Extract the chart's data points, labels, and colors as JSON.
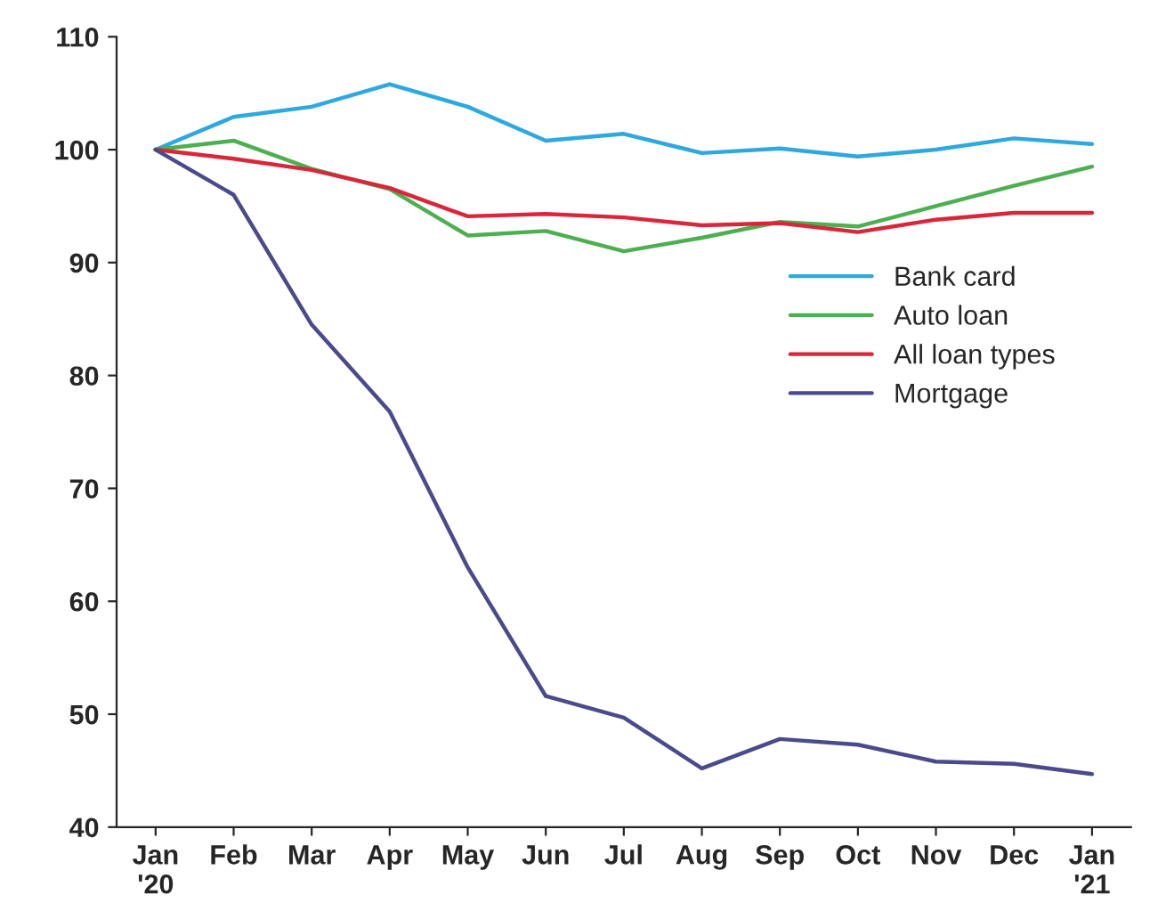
{
  "chart_data": {
    "type": "line",
    "categories": [
      "Jan\n'20",
      "Feb",
      "Mar",
      "Apr",
      "May",
      "Jun",
      "Jul",
      "Aug",
      "Sep",
      "Oct",
      "Nov",
      "Dec",
      "Jan\n'21"
    ],
    "series": [
      {
        "name": "Bank card",
        "color": "#2ea8e0",
        "values": [
          100,
          102.9,
          103.8,
          105.8,
          103.8,
          100.8,
          101.4,
          99.7,
          100.1,
          99.4,
          100,
          101,
          100.5
        ]
      },
      {
        "name": "Auto loan",
        "color": "#4caf50",
        "values": [
          100,
          100.8,
          98.3,
          96.5,
          92.4,
          92.8,
          91,
          92.2,
          93.6,
          93.2,
          95,
          96.8,
          98.5
        ]
      },
      {
        "name": "All loan types",
        "color": "#d9263a",
        "values": [
          100,
          99.2,
          98.2,
          96.6,
          94.1,
          94.3,
          94,
          93.3,
          93.5,
          92.7,
          93.8,
          94.4,
          94.4
        ]
      },
      {
        "name": "Mortgage",
        "color": "#4a4a8c",
        "values": [
          100,
          96,
          84.5,
          76.8,
          63,
          51.6,
          49.7,
          45.2,
          47.8,
          47.3,
          45.8,
          45.6,
          44.7
        ]
      }
    ],
    "ylim": [
      40,
      110
    ],
    "yticks": [
      40,
      50,
      60,
      70,
      80,
      90,
      100,
      110
    ],
    "grid": false,
    "legend": "right",
    "marker": "none",
    "line_style": "solid"
  }
}
